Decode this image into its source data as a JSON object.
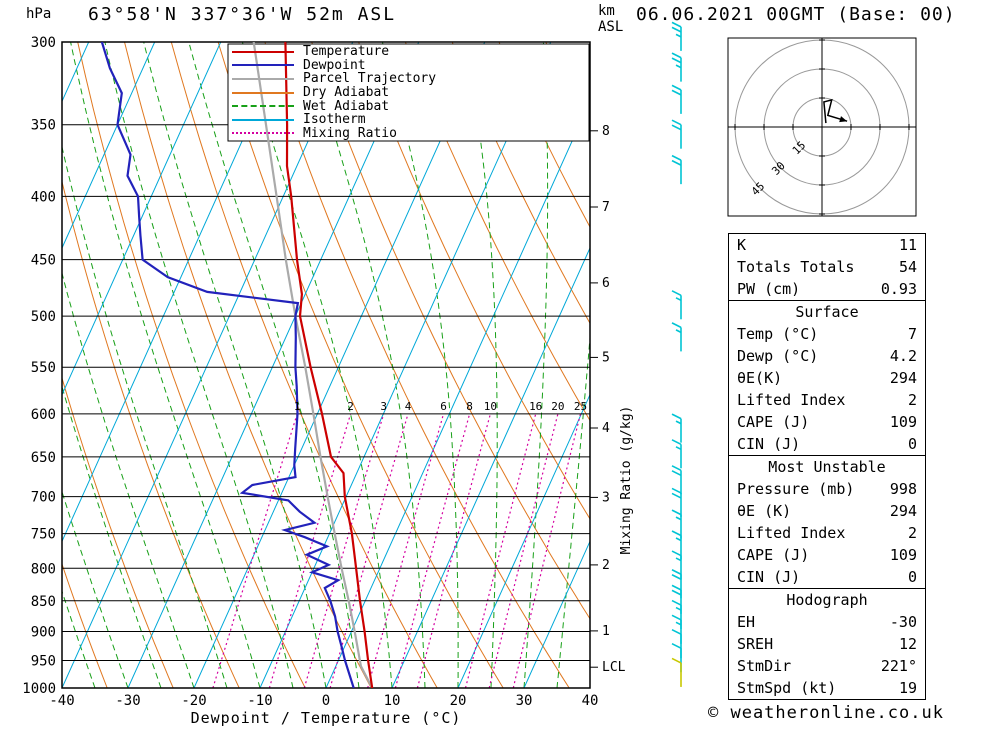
{
  "header": {
    "pressure_unit": "hPa",
    "station_title": "63°58'N 337°36'W 52m ASL",
    "datetime_title": "06.06.2021 00GMT (Base: 00)"
  },
  "axes": {
    "alt_unit_top": "km",
    "alt_unit_bottom": "ASL",
    "xlabel": "Dewpoint / Temperature (°C)",
    "mixing_ratio_label": "Mixing Ratio (g/kg)",
    "lcl_label": "LCL"
  },
  "legend": [
    {
      "label": "Temperature",
      "color": "#cc0000",
      "style": "solid"
    },
    {
      "label": "Dewpoint",
      "color": "#2222bb",
      "style": "solid"
    },
    {
      "label": "Parcel Trajectory",
      "color": "#aaaaaa",
      "style": "solid"
    },
    {
      "label": "Dry Adiabat",
      "color": "#e07820",
      "style": "solid"
    },
    {
      "label": "Wet Adiabat",
      "color": "#18a018",
      "style": "dashed"
    },
    {
      "label": "Isotherm",
      "color": "#00a8d8",
      "style": "solid"
    },
    {
      "label": "Mixing Ratio",
      "color": "#d400a0",
      "style": "dotted"
    }
  ],
  "chart_data": {
    "type": "skew-t-log-p",
    "pressure_ticks_hpa": [
      300,
      350,
      400,
      450,
      500,
      550,
      600,
      650,
      700,
      750,
      800,
      850,
      900,
      950,
      1000
    ],
    "temp_ticks_c": [
      -40,
      -30,
      -20,
      -10,
      0,
      10,
      20,
      30,
      40
    ],
    "temp_range_c": [
      -40,
      40
    ],
    "pressure_range_hpa": [
      300,
      1000
    ],
    "km_pressure_map": {
      "1": 899,
      "2": 795,
      "3": 701,
      "4": 616,
      "5": 540,
      "6": 470,
      "7": 408,
      "8": 354
    },
    "lcl_pressure_hpa": 962,
    "isotherms_c": {
      "min": -120,
      "max": 40,
      "step": 10
    },
    "dry_adiabats_theta_k": {
      "min": 240,
      "max": 440,
      "step": 10
    },
    "wet_adiabats_start_c": {
      "min": -60,
      "max": 40,
      "step": 5
    },
    "mixing_ratio_g_kg": [
      1,
      2,
      3,
      4,
      6,
      8,
      10,
      16,
      20,
      25
    ],
    "temperature_profile": [
      [
        1000,
        7
      ],
      [
        950,
        4.5
      ],
      [
        900,
        2
      ],
      [
        850,
        -0.8
      ],
      [
        800,
        -3.6
      ],
      [
        750,
        -6.6
      ],
      [
        700,
        -10.2
      ],
      [
        670,
        -12
      ],
      [
        650,
        -15
      ],
      [
        600,
        -19.3
      ],
      [
        550,
        -24.2
      ],
      [
        500,
        -29.3
      ],
      [
        480,
        -30.5
      ],
      [
        450,
        -33.6
      ],
      [
        400,
        -38.8
      ],
      [
        378,
        -41.5
      ],
      [
        350,
        -44.3
      ],
      [
        300,
        -50.2
      ]
    ],
    "dewpoint_profile": [
      [
        1000,
        4.2
      ],
      [
        950,
        1
      ],
      [
        925,
        -0.5
      ],
      [
        900,
        -2.1
      ],
      [
        875,
        -3.5
      ],
      [
        850,
        -5.3
      ],
      [
        830,
        -7
      ],
      [
        818,
        -5.5
      ],
      [
        806,
        -10
      ],
      [
        795,
        -8
      ],
      [
        780,
        -12
      ],
      [
        768,
        -9.5
      ],
      [
        755,
        -13.5
      ],
      [
        745,
        -17
      ],
      [
        735,
        -13
      ],
      [
        720,
        -16
      ],
      [
        705,
        -18.5
      ],
      [
        695,
        -26
      ],
      [
        685,
        -25
      ],
      [
        675,
        -19
      ],
      [
        660,
        -20
      ],
      [
        640,
        -21
      ],
      [
        600,
        -23
      ],
      [
        570,
        -25
      ],
      [
        550,
        -26.5
      ],
      [
        520,
        -28.5
      ],
      [
        500,
        -30
      ],
      [
        488,
        -30.5
      ],
      [
        478,
        -45
      ],
      [
        465,
        -52
      ],
      [
        450,
        -57
      ],
      [
        430,
        -59
      ],
      [
        415,
        -60.5
      ],
      [
        400,
        -62
      ],
      [
        385,
        -65
      ],
      [
        370,
        -66
      ],
      [
        350,
        -70
      ],
      [
        330,
        -71.5
      ],
      [
        315,
        -75
      ],
      [
        300,
        -78
      ]
    ],
    "parcel_profile": [
      [
        1000,
        7
      ],
      [
        960,
        3.8
      ],
      [
        900,
        0.5
      ],
      [
        850,
        -2.5
      ],
      [
        800,
        -5.8
      ],
      [
        750,
        -9.2
      ],
      [
        700,
        -12.8
      ],
      [
        650,
        -16.6
      ],
      [
        600,
        -20.6
      ],
      [
        550,
        -25
      ],
      [
        500,
        -30
      ],
      [
        450,
        -35.3
      ],
      [
        400,
        -41
      ],
      [
        350,
        -47.5
      ],
      [
        300,
        -55
      ]
    ],
    "wind_barbs": [
      [
        305,
        25
      ],
      [
        323,
        25
      ],
      [
        343,
        20
      ],
      [
        366,
        20
      ],
      [
        391,
        20
      ],
      [
        503,
        15
      ],
      [
        534,
        15
      ],
      [
        633,
        15
      ],
      [
        664,
        15
      ],
      [
        697,
        20
      ],
      [
        727,
        20
      ],
      [
        757,
        15
      ],
      [
        787,
        15
      ],
      [
        817,
        15
      ],
      [
        846,
        20
      ],
      [
        871,
        20
      ],
      [
        896,
        15
      ],
      [
        921,
        15
      ],
      [
        946,
        10
      ],
      [
        971,
        10
      ],
      [
        998,
        10
      ]
    ],
    "surface_barb_pressure": 998,
    "colors": {
      "temperature": "#cc0000",
      "dewpoint": "#2222bb",
      "parcel": "#aaaaaa",
      "dry_adiabat": "#e07820",
      "wet_adiabat": "#18a018",
      "isotherm": "#00a8d8",
      "mixing_ratio": "#d400a0",
      "grid": "#000000",
      "barb": "#00c4d4",
      "surface_barb": "#c8c800"
    }
  },
  "hodograph": {
    "unit": "kt",
    "rings_kt": [
      15,
      30,
      45
    ],
    "trace_kt": [
      [
        2,
        2
      ],
      [
        1,
        13
      ],
      [
        5,
        14
      ],
      [
        3,
        6
      ],
      [
        13,
        3
      ]
    ]
  },
  "stats": {
    "top": [
      [
        "K",
        "11"
      ],
      [
        "Totals Totals",
        "54"
      ],
      [
        "PW (cm)",
        "0.93"
      ]
    ],
    "sections": [
      {
        "title": "Surface",
        "rows": [
          [
            "Temp (°C)",
            "7"
          ],
          [
            "Dewp (°C)",
            "4.2"
          ],
          [
            "θE(K)",
            "294"
          ],
          [
            "Lifted Index",
            "2"
          ],
          [
            "CAPE (J)",
            "109"
          ],
          [
            "CIN (J)",
            "0"
          ]
        ]
      },
      {
        "title": "Most Unstable",
        "rows": [
          [
            "Pressure (mb)",
            "998"
          ],
          [
            "θE (K)",
            "294"
          ],
          [
            "Lifted Index",
            "2"
          ],
          [
            "CAPE (J)",
            "109"
          ],
          [
            "CIN (J)",
            "0"
          ]
        ]
      },
      {
        "title": "Hodograph",
        "rows": [
          [
            "EH",
            "-30"
          ],
          [
            "SREH",
            "12"
          ],
          [
            "StmDir",
            "221°"
          ],
          [
            "StmSpd (kt)",
            "19"
          ]
        ]
      }
    ]
  },
  "footer": {
    "copyright": "© weatheronline.co.uk"
  }
}
